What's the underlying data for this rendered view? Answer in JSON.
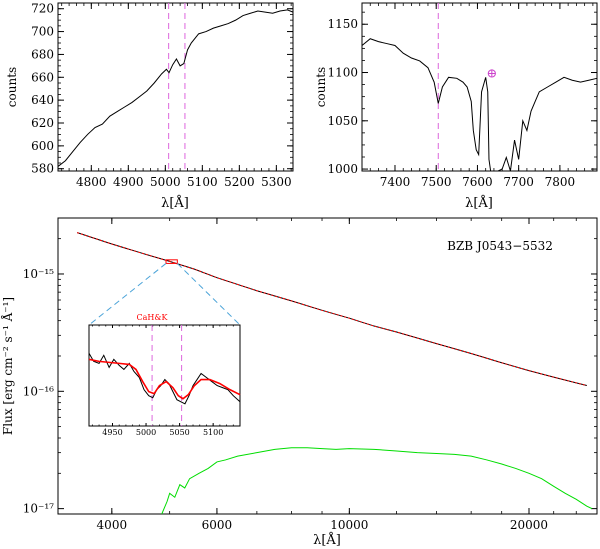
{
  "chart_data": [
    {
      "id": "top-left",
      "type": "line",
      "xlabel": "λ[Å]",
      "ylabel": "counts",
      "xlim": [
        4710,
        5345
      ],
      "ylim": [
        578,
        725
      ],
      "xticks": [
        4800,
        4900,
        5000,
        5100,
        5200,
        5300
      ],
      "yticks": [
        580,
        600,
        620,
        640,
        660,
        680,
        700,
        720
      ],
      "vlines": [
        5009,
        5053
      ],
      "vline_color": "#dd66dd",
      "series": [
        {
          "color": "#000000",
          "points": [
            [
              4710,
              582
            ],
            [
              4730,
              587
            ],
            [
              4750,
              595
            ],
            [
              4770,
              603
            ],
            [
              4790,
              610
            ],
            [
              4810,
              616
            ],
            [
              4830,
              619
            ],
            [
              4850,
              626
            ],
            [
              4870,
              630
            ],
            [
              4890,
              634
            ],
            [
              4910,
              638
            ],
            [
              4930,
              643
            ],
            [
              4950,
              648
            ],
            [
              4970,
              655
            ],
            [
              4990,
              663
            ],
            [
              5003,
              667
            ],
            [
              5010,
              664
            ],
            [
              5020,
              671
            ],
            [
              5030,
              676
            ],
            [
              5040,
              670
            ],
            [
              5050,
              672
            ],
            [
              5060,
              684
            ],
            [
              5070,
              690
            ],
            [
              5090,
              698
            ],
            [
              5110,
              700
            ],
            [
              5130,
              703
            ],
            [
              5150,
              705
            ],
            [
              5170,
              707
            ],
            [
              5190,
              710
            ],
            [
              5210,
              714
            ],
            [
              5230,
              716
            ],
            [
              5250,
              718
            ],
            [
              5270,
              717
            ],
            [
              5290,
              716
            ],
            [
              5310,
              718
            ],
            [
              5330,
              719
            ],
            [
              5345,
              717
            ]
          ]
        }
      ]
    },
    {
      "id": "top-right",
      "type": "line",
      "xlabel": "λ[Å]",
      "ylabel": "counts",
      "xlim": [
        7320,
        7890
      ],
      "ylim": [
        998,
        1172
      ],
      "xticks": [
        7400,
        7500,
        7600,
        7700,
        7800
      ],
      "yticks": [
        1000,
        1050,
        1100,
        1150
      ],
      "vlines": [
        7505
      ],
      "vline_color": "#dd66dd",
      "annotation": {
        "symbol": "⊕",
        "x": 7635,
        "y": 1100,
        "color": "#cc44cc"
      },
      "series": [
        {
          "color": "#000000",
          "points": [
            [
              7320,
              1128
            ],
            [
              7340,
              1135
            ],
            [
              7360,
              1132
            ],
            [
              7380,
              1130
            ],
            [
              7400,
              1128
            ],
            [
              7420,
              1120
            ],
            [
              7440,
              1115
            ],
            [
              7460,
              1112
            ],
            [
              7480,
              1105
            ],
            [
              7495,
              1090
            ],
            [
              7505,
              1068
            ],
            [
              7515,
              1085
            ],
            [
              7530,
              1095
            ],
            [
              7550,
              1094
            ],
            [
              7565,
              1090
            ],
            [
              7575,
              1085
            ],
            [
              7585,
              1070
            ],
            [
              7590,
              1040
            ],
            [
              7597,
              1020
            ],
            [
              7603,
              1015
            ],
            [
              7610,
              1080
            ],
            [
              7620,
              1095
            ],
            [
              7625,
              1080
            ],
            [
              7628,
              1010
            ],
            [
              7632,
              998
            ],
            [
              7650,
              998
            ],
            [
              7660,
              1000
            ],
            [
              7670,
              1012
            ],
            [
              7680,
              998
            ],
            [
              7690,
              1030
            ],
            [
              7700,
              1010
            ],
            [
              7710,
              1050
            ],
            [
              7720,
              1040
            ],
            [
              7730,
              1060
            ],
            [
              7740,
              1070
            ],
            [
              7750,
              1080
            ],
            [
              7770,
              1085
            ],
            [
              7790,
              1090
            ],
            [
              7810,
              1095
            ],
            [
              7830,
              1092
            ],
            [
              7850,
              1090
            ],
            [
              7870,
              1092
            ],
            [
              7890,
              1094
            ]
          ]
        }
      ]
    },
    {
      "id": "bottom",
      "type": "line",
      "xscale": "log",
      "yscale": "log",
      "xlabel": "λ[Å]",
      "ylabel": "Flux [erg cm⁻² s⁻¹ Å⁻¹]",
      "xlim": [
        3250,
        26000
      ],
      "ylim": [
        9e-18,
        3e-15
      ],
      "xticks": [
        4000,
        6000,
        10000,
        20000
      ],
      "yticks": [
        1e-17,
        1e-16,
        1e-15
      ],
      "ytick_labels": [
        "10⁻¹⁷",
        "10⁻¹⁶",
        "10⁻¹⁵"
      ],
      "annotation_text": "BZB J0543−5532",
      "highlight_box": {
        "x": [
          4930,
          5150
        ],
        "y": [
          1.23e-15,
          1.32e-15
        ],
        "color": "#ff0000"
      },
      "series": [
        {
          "color": "#000000",
          "points": [
            [
              3500,
              2.25e-15
            ],
            [
              4000,
              1.8e-15
            ],
            [
              4500,
              1.5e-15
            ],
            [
              5000,
              1.28e-15
            ],
            [
              5500,
              1.1e-15
            ],
            [
              6000,
              9.3e-16
            ],
            [
              7000,
              7.2e-16
            ],
            [
              8000,
              5.9e-16
            ],
            [
              9000,
              4.9e-16
            ],
            [
              10000,
              4.2e-16
            ],
            [
              11000,
              3.6e-16
            ],
            [
              12000,
              3.2e-16
            ],
            [
              14000,
              2.55e-16
            ],
            [
              16000,
              2.1e-16
            ],
            [
              18000,
              1.75e-16
            ],
            [
              20000,
              1.5e-16
            ],
            [
              22000,
              1.32e-16
            ],
            [
              24000,
              1.18e-16
            ],
            [
              25000,
              1.12e-16
            ]
          ]
        },
        {
          "color": "#ff0000",
          "dashed": true,
          "points": [
            [
              3500,
              2.25e-15
            ],
            [
              4000,
              1.8e-15
            ],
            [
              4500,
              1.5e-15
            ],
            [
              5000,
              1.28e-15
            ],
            [
              5500,
              1.1e-15
            ],
            [
              6000,
              9.3e-16
            ],
            [
              7000,
              7.2e-16
            ],
            [
              8000,
              5.9e-16
            ],
            [
              9000,
              4.9e-16
            ],
            [
              10000,
              4.2e-16
            ],
            [
              11000,
              3.6e-16
            ],
            [
              12000,
              3.2e-16
            ],
            [
              14000,
              2.55e-16
            ],
            [
              16000,
              2.1e-16
            ],
            [
              18000,
              1.75e-16
            ],
            [
              20000,
              1.5e-16
            ],
            [
              22000,
              1.32e-16
            ],
            [
              24000,
              1.18e-16
            ],
            [
              25000,
              1.12e-16
            ]
          ]
        },
        {
          "color": "#00dd00",
          "points": [
            [
              4850,
              9e-18
            ],
            [
              4950,
              1.15e-17
            ],
            [
              5000,
              1.35e-17
            ],
            [
              5100,
              1.25e-17
            ],
            [
              5200,
              1.6e-17
            ],
            [
              5300,
              1.5e-17
            ],
            [
              5400,
              1.8e-17
            ],
            [
              5600,
              2e-17
            ],
            [
              5800,
              2.2e-17
            ],
            [
              6000,
              2.5e-17
            ],
            [
              6200,
              2.6e-17
            ],
            [
              6500,
              2.8e-17
            ],
            [
              7000,
              3e-17
            ],
            [
              7500,
              3.2e-17
            ],
            [
              8000,
              3.3e-17
            ],
            [
              8500,
              3.3e-17
            ],
            [
              9000,
              3.25e-17
            ],
            [
              9500,
              3.2e-17
            ],
            [
              10000,
              3.25e-17
            ],
            [
              11000,
              3.2e-17
            ],
            [
              12000,
              3.1e-17
            ],
            [
              13000,
              3e-17
            ],
            [
              14000,
              2.95e-17
            ],
            [
              15000,
              2.9e-17
            ],
            [
              16000,
              2.8e-17
            ],
            [
              17000,
              2.6e-17
            ],
            [
              18000,
              2.4e-17
            ],
            [
              19000,
              2.2e-17
            ],
            [
              20000,
              2e-17
            ],
            [
              21000,
              1.8e-17
            ],
            [
              22000,
              1.55e-17
            ],
            [
              23000,
              1.35e-17
            ],
            [
              24000,
              1.2e-17
            ],
            [
              25000,
              1.05e-17
            ],
            [
              25500,
              1e-17
            ]
          ]
        }
      ]
    },
    {
      "id": "inset",
      "type": "line",
      "xlim": [
        4915,
        5140
      ],
      "ylim": [
        0.0,
        1.0
      ],
      "xticks": [
        4950,
        5000,
        5050,
        5100
      ],
      "vlines": [
        5009,
        5053
      ],
      "vline_color": "#dd66dd",
      "label": "CaH&K",
      "label_color": "#ff0000",
      "series": [
        {
          "color": "#000000",
          "points": [
            [
              4915,
              0.72
            ],
            [
              4922,
              0.64
            ],
            [
              4930,
              0.62
            ],
            [
              4937,
              0.7
            ],
            [
              4945,
              0.58
            ],
            [
              4952,
              0.66
            ],
            [
              4960,
              0.6
            ],
            [
              4967,
              0.56
            ],
            [
              4975,
              0.62
            ],
            [
              4982,
              0.54
            ],
            [
              4990,
              0.48
            ],
            [
              4997,
              0.36
            ],
            [
              5004,
              0.3
            ],
            [
              5010,
              0.28
            ],
            [
              5016,
              0.36
            ],
            [
              5022,
              0.4
            ],
            [
              5028,
              0.46
            ],
            [
              5034,
              0.42
            ],
            [
              5040,
              0.34
            ],
            [
              5046,
              0.26
            ],
            [
              5052,
              0.24
            ],
            [
              5058,
              0.22
            ],
            [
              5064,
              0.3
            ],
            [
              5070,
              0.4
            ],
            [
              5076,
              0.46
            ],
            [
              5082,
              0.52
            ],
            [
              5090,
              0.48
            ],
            [
              5098,
              0.44
            ],
            [
              5106,
              0.4
            ],
            [
              5114,
              0.38
            ],
            [
              5122,
              0.36
            ],
            [
              5130,
              0.3
            ],
            [
              5140,
              0.24
            ]
          ]
        },
        {
          "color": "#ff0000",
          "points": [
            [
              4915,
              0.66
            ],
            [
              4930,
              0.64
            ],
            [
              4945,
              0.63
            ],
            [
              4960,
              0.62
            ],
            [
              4975,
              0.61
            ],
            [
              4985,
              0.56
            ],
            [
              4995,
              0.44
            ],
            [
              5004,
              0.34
            ],
            [
              5012,
              0.32
            ],
            [
              5020,
              0.4
            ],
            [
              5030,
              0.44
            ],
            [
              5040,
              0.38
            ],
            [
              5048,
              0.3
            ],
            [
              5055,
              0.27
            ],
            [
              5063,
              0.31
            ],
            [
              5072,
              0.4
            ],
            [
              5082,
              0.46
            ],
            [
              5095,
              0.46
            ],
            [
              5110,
              0.42
            ],
            [
              5125,
              0.36
            ],
            [
              5140,
              0.31
            ]
          ]
        }
      ]
    }
  ]
}
